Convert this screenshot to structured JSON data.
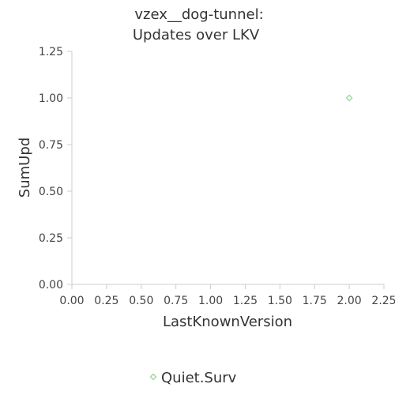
{
  "chart_data": {
    "type": "scatter",
    "title": [
      "vzex__dog-tunnel:",
      "Updates over LKV"
    ],
    "xlabel": "LastKnownVersion",
    "ylabel": "SumUpd",
    "xlim": [
      0,
      2.25
    ],
    "ylim": [
      0,
      1.25
    ],
    "xticks": [
      "0.00",
      "0.25",
      "0.50",
      "0.75",
      "1.00",
      "1.25",
      "1.50",
      "1.75",
      "2.00",
      "2.25"
    ],
    "yticks": [
      "0.00",
      "0.25",
      "0.50",
      "0.75",
      "1.00",
      "1.25"
    ],
    "grid": false,
    "legend_position": "bottom",
    "series": [
      {
        "name": "Quiet.Surv",
        "color": "#8fd18a",
        "marker": "diamond",
        "points": [
          {
            "x": 2,
            "y": 1
          }
        ]
      }
    ]
  }
}
